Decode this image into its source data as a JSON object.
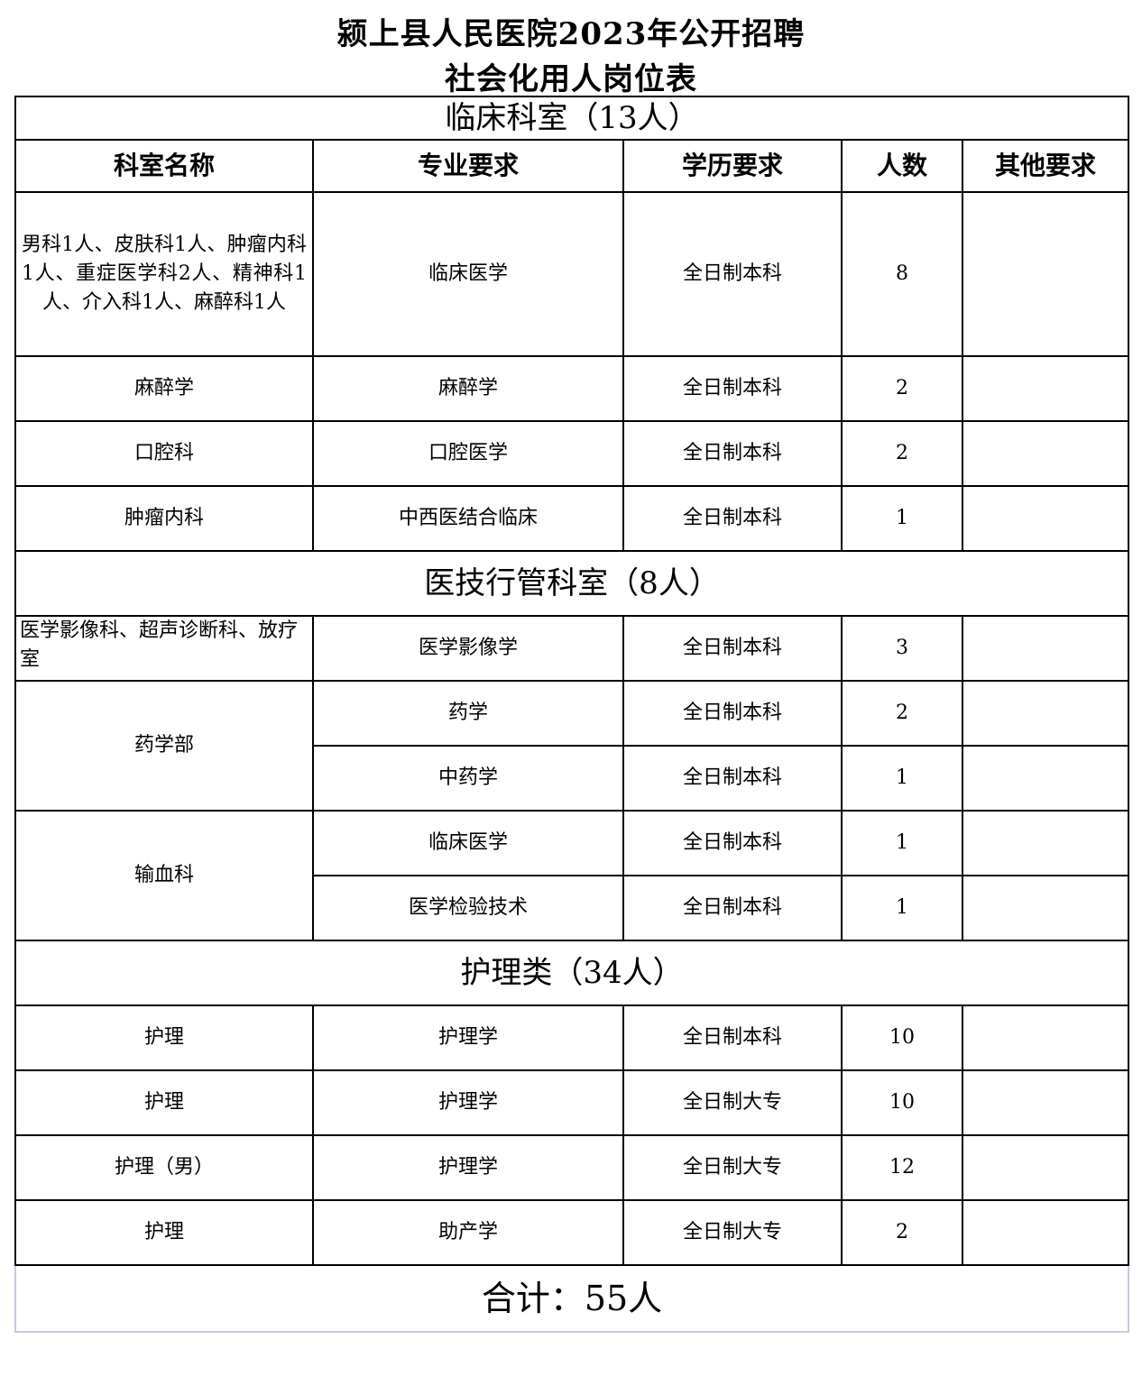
{
  "title_line1": "颍上县人民医院2023年公开招聘",
  "title_line2": "社会化用人岗位表",
  "headers": [
    "科室名称",
    "专业要求",
    "学历要求",
    "人数",
    "其他要求"
  ],
  "sections": [
    {
      "title": "临床科室（13人）",
      "groups": [
        {
          "dept": "男科1人、皮肤科1人、肿瘤内科1人、重症医学科2人、精神科1人、介入科1人、麻醉科1人",
          "positions": [
            {
              "major": "临床医学",
              "edu": "全日制本科",
              "count": "8",
              "other": ""
            }
          ]
        },
        {
          "dept": "麻醉学",
          "positions": [
            {
              "major": "麻醉学",
              "edu": "全日制本科",
              "count": "2",
              "other": ""
            }
          ]
        },
        {
          "dept": "口腔科",
          "positions": [
            {
              "major": "口腔医学",
              "edu": "全日制本科",
              "count": "2",
              "other": ""
            }
          ]
        },
        {
          "dept": "肿瘤内科",
          "positions": [
            {
              "major": "中西医结合临床",
              "edu": "全日制本科",
              "count": "1",
              "other": ""
            }
          ]
        }
      ]
    },
    {
      "title": "医技行管科室（8人）",
      "groups": [
        {
          "dept": "医学影像科、超声诊断科、放疗室",
          "positions": [
            {
              "major": "医学影像学",
              "edu": "全日制本科",
              "count": "3",
              "other": ""
            }
          ]
        },
        {
          "dept": "药学部",
          "positions": [
            {
              "major": "药学",
              "edu": "全日制本科",
              "count": "2",
              "other": ""
            },
            {
              "major": "中药学",
              "edu": "全日制本科",
              "count": "1",
              "other": ""
            }
          ]
        },
        {
          "dept": "输血科",
          "positions": [
            {
              "major": "临床医学",
              "edu": "全日制本科",
              "count": "1",
              "other": ""
            },
            {
              "major": "医学检验技术",
              "edu": "全日制本科",
              "count": "1",
              "other": ""
            }
          ]
        }
      ]
    },
    {
      "title": "护理类（34人）",
      "groups": [
        {
          "dept": "护理",
          "positions": [
            {
              "major": "护理学",
              "edu": "全日制本科",
              "count": "10",
              "other": ""
            }
          ]
        },
        {
          "dept": "护理",
          "positions": [
            {
              "major": "护理学",
              "edu": "全日制大专",
              "count": "10",
              "other": ""
            }
          ]
        },
        {
          "dept": "护理（男）",
          "positions": [
            {
              "major": "护理学",
              "edu": "全日制大专",
              "count": "12",
              "other": ""
            }
          ]
        },
        {
          "dept": "护理",
          "positions": [
            {
              "major": "助产学",
              "edu": "全日制大专",
              "count": "2",
              "other": ""
            }
          ]
        }
      ]
    }
  ],
  "total": "合计：55人"
}
